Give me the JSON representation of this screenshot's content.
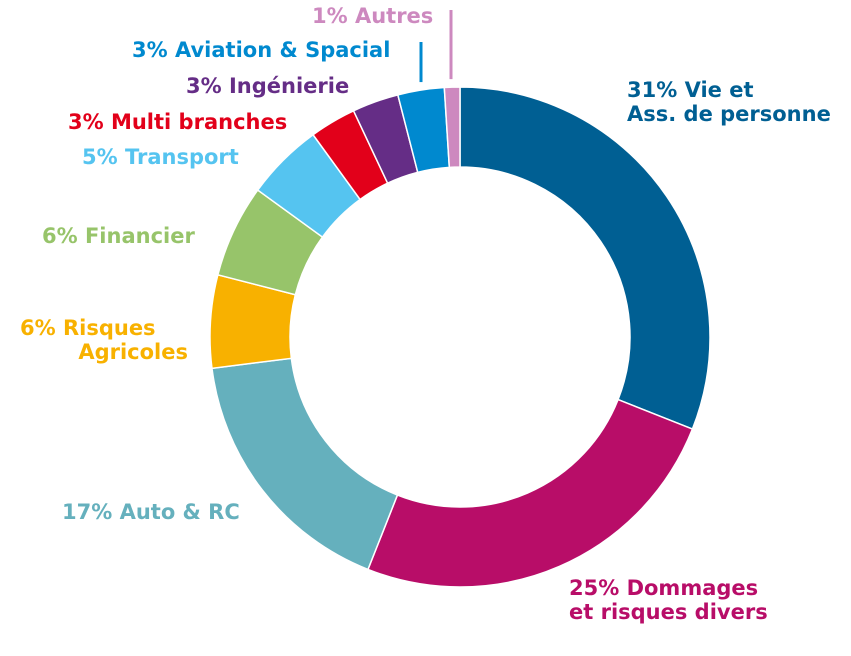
{
  "chart_data": {
    "type": "pie",
    "donut": true,
    "start_angle_deg": 0,
    "direction": "clockwise",
    "slices": [
      {
        "label": "31% Vie et",
        "label2": "Ass. de personne",
        "value": 31,
        "color": "#005f93"
      },
      {
        "label": "25% Dommages",
        "label2": "et risques divers",
        "value": 25,
        "color": "#b80d68"
      },
      {
        "label": "17% Auto & RC",
        "label2": "",
        "value": 17,
        "color": "#65b0bd"
      },
      {
        "label": "6% Risques",
        "label2": "Agricoles",
        "value": 6,
        "color": "#f8b100"
      },
      {
        "label": "6% Financier",
        "label2": "",
        "value": 6,
        "color": "#97c46a"
      },
      {
        "label": "5% Transport",
        "label2": "",
        "value": 5,
        "color": "#55c4f0"
      },
      {
        "label": "3% Multi branches",
        "label2": "",
        "value": 3,
        "color": "#e2001a"
      },
      {
        "label": "3% Ingénierie",
        "label2": "",
        "value": 3,
        "color": "#652d86"
      },
      {
        "label": "3% Aviation & Spacial",
        "label2": "",
        "value": 3,
        "color": "#0089cf"
      },
      {
        "label": "1% Autres",
        "label2": "",
        "value": 1,
        "color": "#cd89bf"
      }
    ]
  }
}
